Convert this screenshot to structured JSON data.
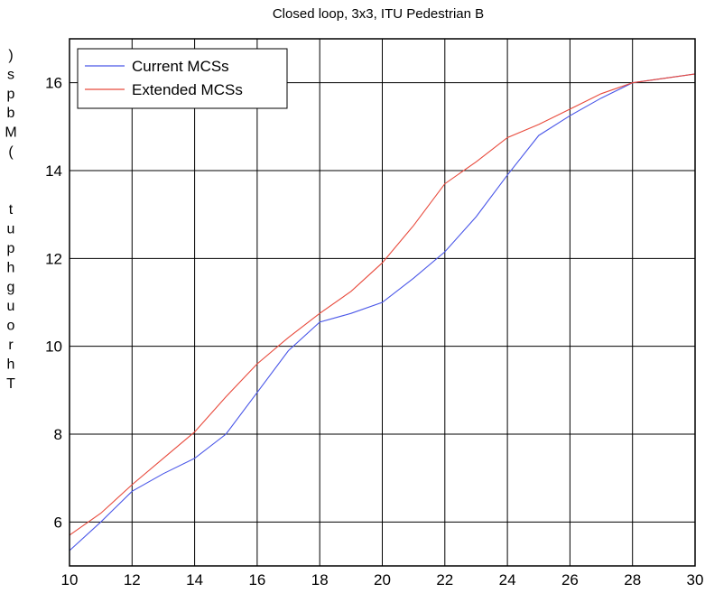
{
  "chart_data": {
    "type": "line",
    "title": "Closed loop, 3x3, ITU Pedestrian B",
    "xlabel": "",
    "ylabel": "Throughput (Mbps)",
    "ylabel_display_chars": ")spbM(  tuphguorhT",
    "xlim": [
      10,
      30
    ],
    "ylim": [
      5,
      17
    ],
    "xticks": [
      10,
      12,
      14,
      16,
      18,
      20,
      22,
      24,
      26,
      28,
      30
    ],
    "yticks": [
      6,
      8,
      10,
      12,
      14,
      16
    ],
    "grid": true,
    "legend_position": "top-left",
    "x": [
      10,
      11,
      12,
      13,
      14,
      15,
      16,
      17,
      18,
      19,
      20,
      21,
      22,
      23,
      24,
      25,
      26,
      27,
      28,
      29,
      30
    ],
    "series": [
      {
        "name": "Current MCSs",
        "color": "#4a57e8",
        "values": [
          5.35,
          6.0,
          6.7,
          7.1,
          7.45,
          8.0,
          8.95,
          9.9,
          10.55,
          10.75,
          11.0,
          11.55,
          12.15,
          12.95,
          13.9,
          14.8,
          15.25,
          15.65,
          16.0,
          16.1,
          16.2
        ]
      },
      {
        "name": "Extended MCSs",
        "color": "#e84a3c",
        "values": [
          5.7,
          6.2,
          6.85,
          7.45,
          8.05,
          8.85,
          9.6,
          10.2,
          10.75,
          11.25,
          11.9,
          12.75,
          13.7,
          14.2,
          14.75,
          15.05,
          15.4,
          15.75,
          16.0,
          16.1,
          16.2
        ]
      }
    ]
  }
}
